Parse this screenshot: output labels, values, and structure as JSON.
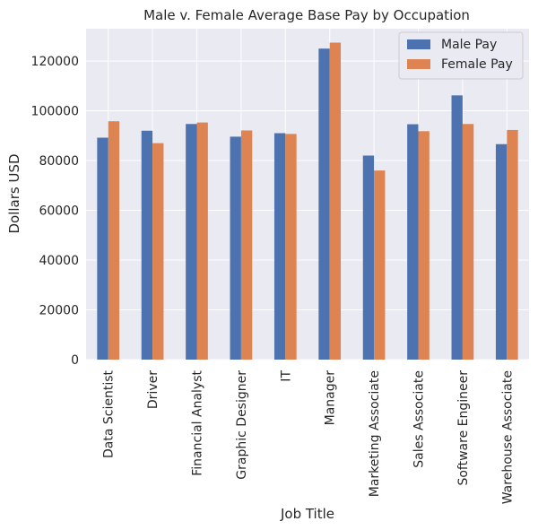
{
  "chart_data": {
    "type": "bar",
    "title": "Male v. Female Average Base Pay by Occupation",
    "xlabel": "Job Title",
    "ylabel": "Dollars USD",
    "categories": [
      "Data Scientist",
      "Driver",
      "Financial Analyst",
      "Graphic Designer",
      "IT",
      "Manager",
      "Marketing Associate",
      "Sales Associate",
      "Software Engineer",
      "Warehouse Associate"
    ],
    "series": [
      {
        "name": "Male Pay",
        "color": "#4c72b0",
        "values": [
          89200,
          92000,
          94700,
          89600,
          91000,
          125000,
          82000,
          94600,
          106200,
          86600
        ]
      },
      {
        "name": "Female Pay",
        "color": "#dd8452",
        "values": [
          95800,
          87000,
          95300,
          92100,
          90700,
          127400,
          76000,
          91800,
          94700,
          92300
        ]
      }
    ],
    "ylim": [
      0,
      133000
    ],
    "yticks": [
      0,
      20000,
      40000,
      60000,
      80000,
      100000,
      120000
    ],
    "grid": true,
    "legend": "top-right"
  }
}
